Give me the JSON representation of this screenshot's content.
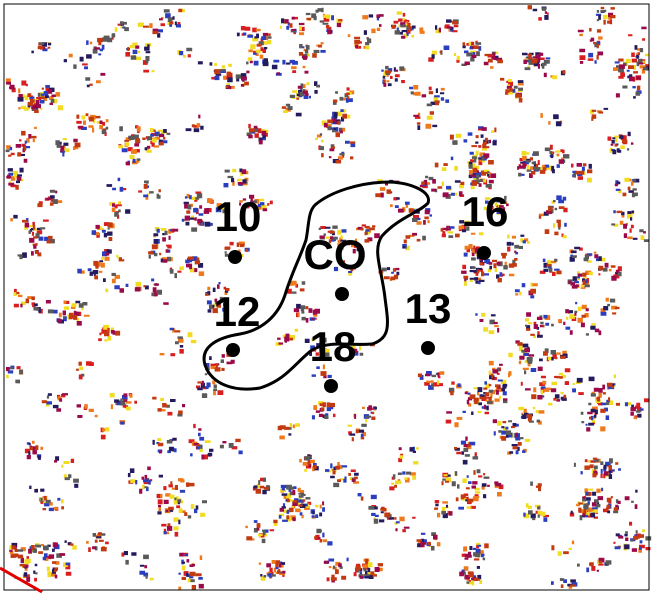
{
  "labels": [
    {
      "text": "10"
    },
    {
      "text": "16"
    },
    {
      "text": "CO"
    },
    {
      "text": "12"
    },
    {
      "text": "13"
    },
    {
      "text": "18"
    }
  ]
}
